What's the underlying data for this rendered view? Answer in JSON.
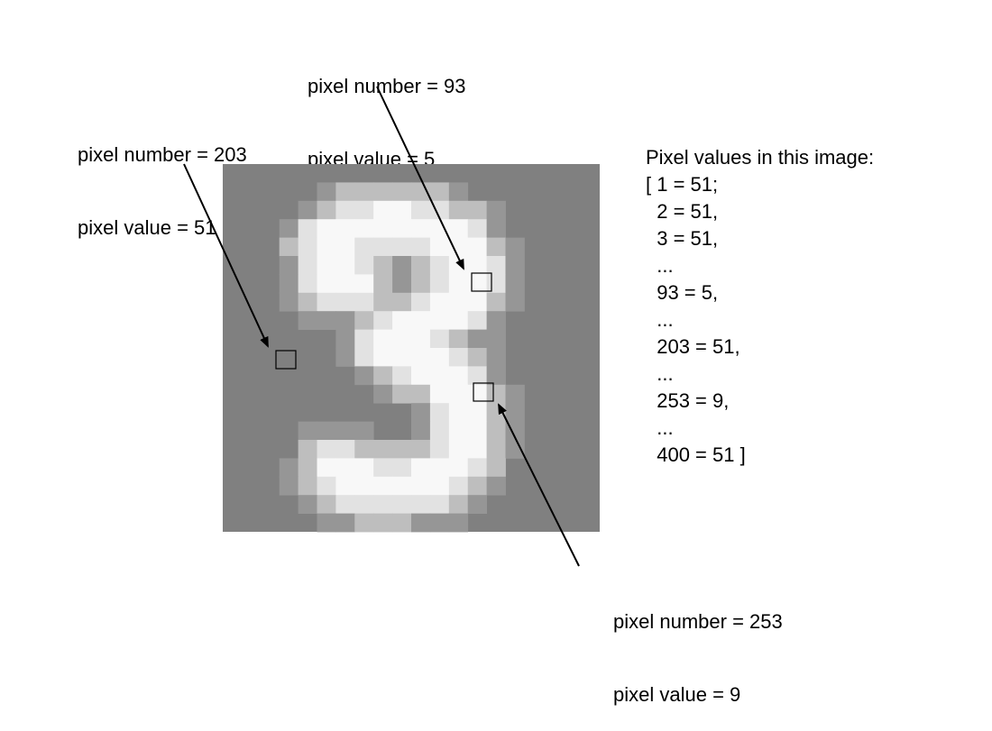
{
  "callouts": {
    "pixel_93": {
      "number_text": "pixel number = 93",
      "value_text": "pixel value = 5"
    },
    "pixel_203": {
      "number_text": "pixel number = 203",
      "value_text": "pixel value = 51"
    },
    "pixel_253": {
      "number_text": "pixel number = 253",
      "value_text": "pixel value = 9"
    }
  },
  "values_panel": {
    "title": "Pixel values in this image:",
    "rows": [
      "[ 1 = 51;",
      "  2 = 51,",
      "  3 = 51,",
      "  ...",
      "  93 = 5,",
      "  ...",
      "  203 = 51,",
      "  ...",
      "  253 = 9,",
      "  ...",
      "  400 = 51 ]"
    ]
  },
  "colors": {
    "background": "#808080",
    "arrow": "#000000"
  },
  "image_grid": {
    "note_rows": 20,
    "note_cols": 20,
    "levels": [
      "..............................",
      "....................",
      "....................",
      "....................",
      "...................."
    ]
  }
}
